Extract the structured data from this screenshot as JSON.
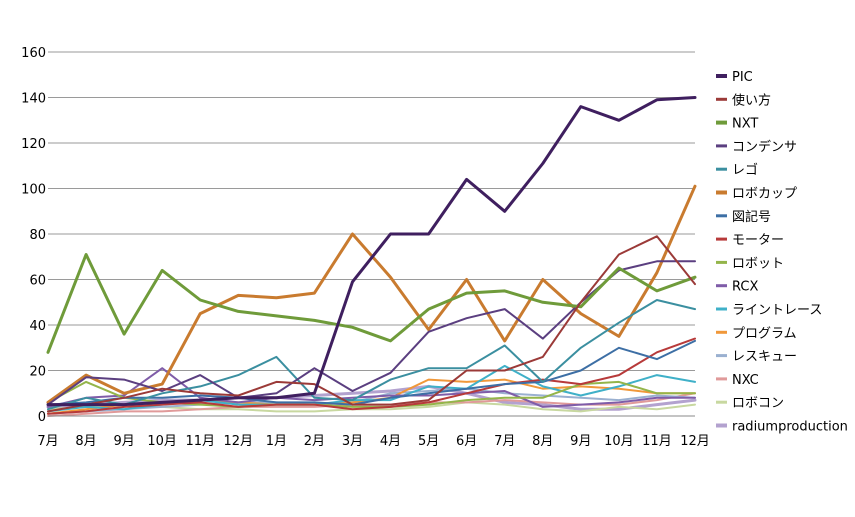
{
  "chart_data": {
    "type": "line",
    "title": "",
    "xlabel": "",
    "ylabel": "",
    "ylim": [
      0,
      160
    ],
    "yticks": [
      0,
      20,
      40,
      60,
      80,
      100,
      120,
      140,
      160
    ],
    "grid": true,
    "legend_position": "right",
    "categories": [
      "7月",
      "8月",
      "9月",
      "10月",
      "11月",
      "12月",
      "1月",
      "2月",
      "3月",
      "4月",
      "5月",
      "6月",
      "7月",
      "8月",
      "9月",
      "10月",
      "11月",
      "12月"
    ],
    "series": [
      {
        "name": "PIC",
        "color": "#3f1f5f",
        "width": 3,
        "values": [
          5,
          5,
          5,
          6,
          7,
          8,
          8,
          10,
          59,
          80,
          80,
          104,
          90,
          111,
          136,
          130,
          139,
          140
        ]
      },
      {
        "name": "使い方",
        "color": "#9b3a38",
        "width": 2,
        "values": [
          2,
          5,
          8,
          12,
          10,
          9,
          15,
          14,
          5,
          5,
          7,
          20,
          20,
          26,
          50,
          71,
          79,
          58
        ]
      },
      {
        "name": "NXT",
        "color": "#6f9b3a",
        "width": 3,
        "values": [
          28,
          71,
          36,
          64,
          51,
          46,
          44,
          42,
          39,
          33,
          47,
          54,
          55,
          50,
          48,
          65,
          55,
          61
        ]
      },
      {
        "name": "コンデンサ",
        "color": "#5b3f80",
        "width": 2,
        "values": [
          5,
          17,
          16,
          11,
          18,
          8,
          10,
          21,
          11,
          19,
          37,
          43,
          47,
          34,
          50,
          64,
          68,
          68
        ]
      },
      {
        "name": "レゴ",
        "color": "#3b8fa0",
        "width": 2,
        "values": [
          3,
          8,
          5,
          10,
          13,
          18,
          26,
          8,
          7,
          16,
          21,
          21,
          31,
          15,
          30,
          41,
          51,
          47
        ]
      },
      {
        "name": "ロボカップ",
        "color": "#c97b2f",
        "width": 3,
        "values": [
          6,
          18,
          10,
          14,
          45,
          53,
          52,
          54,
          80,
          61,
          38,
          60,
          33,
          60,
          45,
          35,
          63,
          101
        ]
      },
      {
        "name": "図記号",
        "color": "#3d6fa5",
        "width": 2,
        "values": [
          5,
          6,
          8,
          8,
          9,
          8,
          6,
          6,
          5,
          8,
          10,
          12,
          14,
          15,
          20,
          30,
          25,
          33
        ]
      },
      {
        "name": "モーター",
        "color": "#b73a3a",
        "width": 2,
        "values": [
          1,
          2,
          4,
          5,
          6,
          4,
          5,
          5,
          3,
          4,
          6,
          10,
          14,
          16,
          14,
          18,
          28,
          34
        ]
      },
      {
        "name": "ロボット",
        "color": "#94b54a",
        "width": 2,
        "values": [
          6,
          15,
          8,
          6,
          5,
          4,
          5,
          5,
          4,
          4,
          5,
          7,
          8,
          8,
          14,
          15,
          10,
          10
        ]
      },
      {
        "name": "RCX",
        "color": "#7f5ca8",
        "width": 2,
        "values": [
          4,
          8,
          9,
          21,
          8,
          6,
          8,
          7,
          8,
          9,
          9,
          10,
          11,
          4,
          5,
          6,
          8,
          8
        ]
      },
      {
        "name": "ライントレース",
        "color": "#3fb0c8",
        "width": 2,
        "values": [
          2,
          4,
          3,
          5,
          7,
          5,
          5,
          5,
          7,
          7,
          13,
          12,
          22,
          13,
          9,
          13,
          18,
          15
        ]
      },
      {
        "name": "プログラム",
        "color": "#f0983a",
        "width": 2,
        "values": [
          1,
          3,
          5,
          6,
          7,
          6,
          5,
          5,
          6,
          8,
          16,
          15,
          16,
          12,
          13,
          12,
          10,
          10
        ]
      },
      {
        "name": "レスキュー",
        "color": "#9ab0d0",
        "width": 2,
        "values": [
          1,
          2,
          3,
          4,
          5,
          6,
          6,
          5,
          6,
          10,
          11,
          12,
          10,
          9,
          8,
          7,
          9,
          8
        ]
      },
      {
        "name": "NXC",
        "color": "#e09a9a",
        "width": 2,
        "values": [
          0,
          1,
          2,
          2,
          3,
          4,
          4,
          4,
          5,
          5,
          6,
          6,
          7,
          6,
          5,
          5,
          7,
          10
        ]
      },
      {
        "name": "ロボコン",
        "color": "#c8d8a0",
        "width": 2,
        "values": [
          3,
          4,
          5,
          4,
          3,
          3,
          2,
          2,
          3,
          3,
          4,
          6,
          5,
          3,
          2,
          4,
          3,
          5
        ]
      },
      {
        "name": "radiumproduction",
        "color": "#b3a2cf",
        "width": 3,
        "values": [
          4,
          5,
          6,
          7,
          7,
          8,
          8,
          9,
          10,
          11,
          13,
          10,
          6,
          5,
          3,
          3,
          5,
          7
        ]
      }
    ]
  }
}
